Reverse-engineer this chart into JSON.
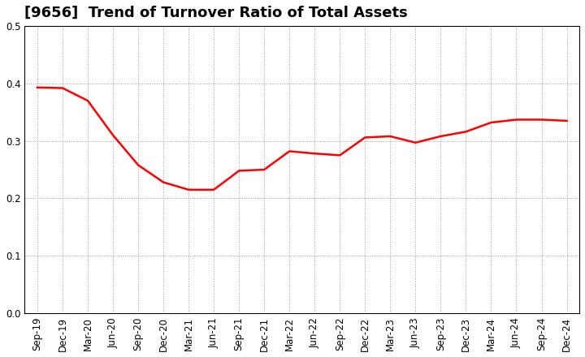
{
  "title": "[9656]  Trend of Turnover Ratio of Total Assets",
  "x_labels": [
    "Sep-19",
    "Dec-19",
    "Mar-20",
    "Jun-20",
    "Sep-20",
    "Dec-20",
    "Mar-21",
    "Jun-21",
    "Sep-21",
    "Dec-21",
    "Mar-22",
    "Jun-22",
    "Sep-22",
    "Dec-22",
    "Mar-23",
    "Jun-23",
    "Sep-23",
    "Dec-23",
    "Mar-24",
    "Jun-24",
    "Sep-24",
    "Dec-24"
  ],
  "y_values": [
    0.393,
    0.392,
    0.37,
    0.31,
    0.258,
    0.228,
    0.215,
    0.215,
    0.248,
    0.25,
    0.282,
    0.278,
    0.275,
    0.306,
    0.308,
    0.297,
    0.308,
    0.316,
    0.332,
    0.337,
    0.337,
    0.335
  ],
  "line_color": "#FF0000",
  "line_width": 1.8,
  "ylim": [
    0.0,
    0.5
  ],
  "yticks": [
    0.0,
    0.1,
    0.2,
    0.3,
    0.4,
    0.5
  ],
  "background_color": "#ffffff",
  "grid_color": "#999999",
  "title_fontsize": 13,
  "tick_fontsize": 8.5
}
